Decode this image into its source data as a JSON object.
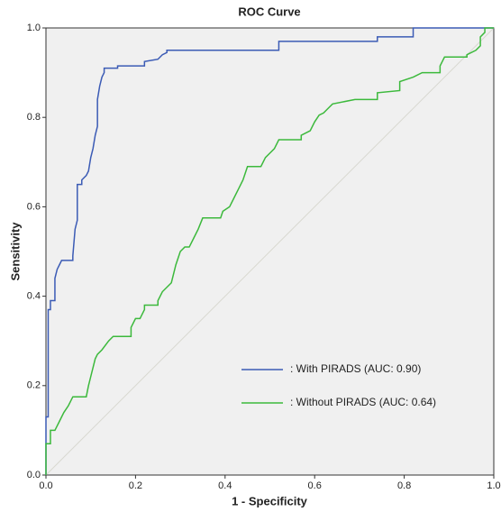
{
  "chart_data": {
    "type": "line",
    "title": "ROC Curve",
    "x_label": "1 - Specificity",
    "y_label": "Sensitivity",
    "xlim": [
      0,
      1
    ],
    "ylim": [
      0,
      1
    ],
    "xticks": [
      {
        "value": 0,
        "label": "0.0"
      },
      {
        "value": 0.2,
        "label": "0.2"
      },
      {
        "value": 0.4,
        "label": "0.4"
      },
      {
        "value": 0.6,
        "label": "0.6"
      },
      {
        "value": 0.8,
        "label": "0.8"
      },
      {
        "value": 1,
        "label": "1.0"
      }
    ],
    "yticks": [
      {
        "value": 0,
        "label": "0.0"
      },
      {
        "value": 0.2,
        "label": "0.2"
      },
      {
        "value": 0.4,
        "label": "0.4"
      },
      {
        "value": 0.6,
        "label": "0.6"
      },
      {
        "value": 0.8,
        "label": "0.8"
      },
      {
        "value": 1,
        "label": "1.0"
      }
    ],
    "grid": false,
    "reference_line": true,
    "series": [
      {
        "name": ": With PIRADS (AUC: 0.90)",
        "color": "#3b5bb5",
        "x": [
          0,
          0,
          0.005,
          0.005,
          0.01,
          0.01,
          0.02,
          0.02,
          0.025,
          0.03,
          0.035,
          0.06,
          0.06,
          0.065,
          0.07,
          0.07,
          0.08,
          0.08,
          0.09,
          0.095,
          0.1,
          0.105,
          0.11,
          0.115,
          0.115,
          0.12,
          0.125,
          0.13,
          0.13,
          0.16,
          0.16,
          0.22,
          0.22,
          0.25,
          0.26,
          0.27,
          0.27,
          0.52,
          0.52,
          0.74,
          0.74,
          0.82,
          0.82,
          1
        ],
        "values": [
          0,
          0.13,
          0.13,
          0.37,
          0.37,
          0.39,
          0.39,
          0.44,
          0.46,
          0.47,
          0.48,
          0.48,
          0.49,
          0.55,
          0.57,
          0.65,
          0.65,
          0.66,
          0.67,
          0.68,
          0.71,
          0.73,
          0.76,
          0.78,
          0.84,
          0.87,
          0.89,
          0.9,
          0.91,
          0.91,
          0.915,
          0.915,
          0.925,
          0.93,
          0.94,
          0.945,
          0.95,
          0.95,
          0.97,
          0.97,
          0.98,
          0.98,
          1,
          1
        ]
      },
      {
        "name": ": Without PIRADS (AUC: 0.64)",
        "color": "#3cb93c",
        "x": [
          0,
          0,
          0.01,
          0.01,
          0.02,
          0.03,
          0.035,
          0.04,
          0.05,
          0.055,
          0.06,
          0.09,
          0.095,
          0.1,
          0.105,
          0.11,
          0.115,
          0.125,
          0.14,
          0.15,
          0.19,
          0.19,
          0.2,
          0.21,
          0.22,
          0.22,
          0.25,
          0.25,
          0.26,
          0.28,
          0.29,
          0.3,
          0.31,
          0.32,
          0.33,
          0.34,
          0.35,
          0.39,
          0.395,
          0.41,
          0.42,
          0.43,
          0.44,
          0.45,
          0.48,
          0.49,
          0.5,
          0.51,
          0.52,
          0.57,
          0.57,
          0.59,
          0.6,
          0.61,
          0.62,
          0.63,
          0.64,
          0.69,
          0.74,
          0.74,
          0.79,
          0.79,
          0.82,
          0.84,
          0.88,
          0.88,
          0.89,
          0.94,
          0.94,
          0.96,
          0.97,
          0.97,
          0.98,
          0.98,
          1
        ],
        "values": [
          0,
          0.07,
          0.07,
          0.1,
          0.1,
          0.12,
          0.13,
          0.14,
          0.155,
          0.165,
          0.175,
          0.175,
          0.2,
          0.22,
          0.24,
          0.26,
          0.27,
          0.28,
          0.3,
          0.31,
          0.31,
          0.33,
          0.35,
          0.35,
          0.37,
          0.38,
          0.38,
          0.39,
          0.41,
          0.43,
          0.47,
          0.5,
          0.51,
          0.51,
          0.53,
          0.55,
          0.575,
          0.575,
          0.59,
          0.6,
          0.62,
          0.64,
          0.66,
          0.69,
          0.69,
          0.71,
          0.72,
          0.73,
          0.75,
          0.75,
          0.76,
          0.77,
          0.79,
          0.805,
          0.81,
          0.82,
          0.83,
          0.84,
          0.84,
          0.855,
          0.86,
          0.88,
          0.89,
          0.9,
          0.9,
          0.915,
          0.935,
          0.935,
          0.94,
          0.95,
          0.96,
          0.98,
          0.99,
          1,
          1
        ]
      }
    ]
  }
}
